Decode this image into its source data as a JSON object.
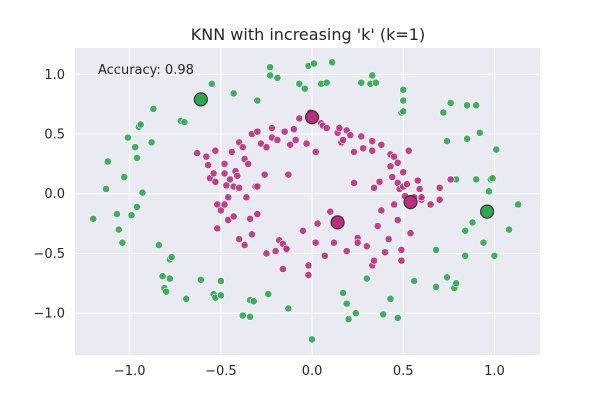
{
  "chart_data": {
    "type": "scatter",
    "title": "KNN with increasing 'k' (k=1)",
    "annotation": "Accuracy: 0.98",
    "xlabel": "",
    "ylabel": "",
    "xlim": [
      -1.3,
      1.25
    ],
    "ylim": [
      -1.35,
      1.22
    ],
    "xticks": [
      -1.0,
      -0.5,
      0.0,
      0.5,
      1.0
    ],
    "xtick_labels": [
      "−1.0",
      "−0.5",
      "0.0",
      "0.5",
      "1.0"
    ],
    "yticks": [
      -1.0,
      -0.5,
      0.0,
      0.5,
      1.0
    ],
    "ytick_labels": [
      "−1.0",
      "−0.5",
      "0.0",
      "0.5",
      "1.0"
    ],
    "grid": true,
    "colors": {
      "background": "#eaeaf2",
      "grid": "#ffffff",
      "outer_class": "#2ca94f",
      "inner_class": "#bd2e7f",
      "highlight_edge": "#333333"
    },
    "series": [
      {
        "class": "outer",
        "points": [
          [
            -1.2,
            -0.21
          ],
          [
            -1.13,
            0.04
          ],
          [
            -1.12,
            0.27
          ],
          [
            -1.07,
            -0.17
          ],
          [
            -1.06,
            -0.3
          ],
          [
            -1.04,
            -0.41
          ],
          [
            -1.03,
            0.14
          ],
          [
            -1.01,
            0.47
          ],
          [
            -0.99,
            -0.18
          ],
          [
            -0.97,
            0.39
          ],
          [
            -0.96,
            -0.11
          ],
          [
            -0.96,
            0.3
          ],
          [
            -0.95,
            0.56
          ],
          [
            -0.94,
            0.58
          ],
          [
            -0.93,
            0.01
          ],
          [
            -0.88,
            0.43
          ],
          [
            -0.87,
            0.71
          ],
          [
            -0.84,
            -0.43
          ],
          [
            -0.82,
            -0.69
          ],
          [
            -0.81,
            -0.79
          ],
          [
            -0.8,
            -0.82
          ],
          [
            -0.78,
            -0.71
          ],
          [
            -0.78,
            -0.55
          ],
          [
            -0.77,
            -0.53
          ],
          [
            -0.72,
            0.61
          ],
          [
            -0.7,
            0.6
          ],
          [
            -0.69,
            -0.88
          ],
          [
            -0.61,
            -0.72
          ],
          [
            -0.55,
            0.92
          ],
          [
            -0.54,
            -0.84
          ],
          [
            -0.53,
            -0.87
          ],
          [
            -0.5,
            -0.85
          ],
          [
            -0.5,
            -0.73
          ],
          [
            -0.43,
            0.84
          ],
          [
            -0.38,
            -1.02
          ],
          [
            -0.34,
            -1.03
          ],
          [
            -0.34,
            -0.89
          ],
          [
            -0.32,
            -0.9
          ],
          [
            -0.3,
            0.78
          ],
          [
            -0.24,
            -0.84
          ],
          [
            -0.23,
            1.06
          ],
          [
            -0.23,
            0.99
          ],
          [
            -0.19,
            0.97
          ],
          [
            -0.13,
            -0.96
          ],
          [
            -0.07,
            0.92
          ],
          [
            -0.04,
            0.88
          ],
          [
            -0.02,
            1.07
          ],
          [
            0.0,
            -1.22
          ],
          [
            0.01,
            1.09
          ],
          [
            0.05,
            0.92
          ],
          [
            0.08,
            0.93
          ],
          [
            0.11,
            1.1
          ],
          [
            0.17,
            -0.83
          ],
          [
            0.19,
            -0.92
          ],
          [
            0.2,
            -1.05
          ],
          [
            0.24,
            -1.0
          ],
          [
            0.27,
            0.93
          ],
          [
            0.3,
            -0.71
          ],
          [
            0.32,
            0.92
          ],
          [
            0.33,
            0.99
          ],
          [
            0.35,
            0.93
          ],
          [
            0.39,
            -1.01
          ],
          [
            0.43,
            -0.88
          ],
          [
            0.47,
            -1.04
          ],
          [
            0.49,
            0.68
          ],
          [
            0.5,
            0.87
          ],
          [
            0.5,
            0.78
          ],
          [
            0.5,
            0.69
          ],
          [
            0.56,
            -0.73
          ],
          [
            0.68,
            -0.47
          ],
          [
            0.68,
            -0.78
          ],
          [
            0.72,
            0.68
          ],
          [
            0.74,
            -0.7
          ],
          [
            0.74,
            0.44
          ],
          [
            0.76,
            0.76
          ],
          [
            0.78,
            -0.79
          ],
          [
            0.79,
            -0.75
          ],
          [
            0.79,
            0.12
          ],
          [
            0.84,
            -0.52
          ],
          [
            0.84,
            -0.31
          ],
          [
            0.85,
            0.74
          ],
          [
            0.85,
            0.46
          ],
          [
            0.88,
            -0.24
          ],
          [
            0.9,
            0.74
          ],
          [
            0.9,
            0.12
          ],
          [
            0.92,
            0.51
          ],
          [
            0.94,
            -0.41
          ],
          [
            0.97,
            0.02
          ],
          [
            0.98,
            0.12
          ],
          [
            0.99,
            0.13
          ],
          [
            1.0,
            -0.52
          ],
          [
            1.01,
            0.37
          ],
          [
            1.08,
            -0.3
          ],
          [
            1.13,
            -0.09
          ]
        ]
      },
      {
        "class": "inner",
        "points": [
          [
            -0.63,
            0.34
          ],
          [
            -0.58,
            0.31
          ],
          [
            -0.57,
            0.24
          ],
          [
            -0.56,
            0.13
          ],
          [
            -0.54,
            0.17
          ],
          [
            -0.53,
            0.36
          ],
          [
            -0.53,
            0.1
          ],
          [
            -0.52,
            -0.09
          ],
          [
            -0.52,
            -0.29
          ],
          [
            -0.5,
            -0.14
          ],
          [
            -0.48,
            -0.09
          ],
          [
            -0.48,
            0.25
          ],
          [
            -0.48,
            0.17
          ],
          [
            -0.47,
            0.07
          ],
          [
            -0.46,
            -0.22
          ],
          [
            -0.46,
            -0.03
          ],
          [
            -0.45,
            0.12
          ],
          [
            -0.44,
            0.35
          ],
          [
            -0.43,
            -0.19
          ],
          [
            -0.43,
            0.06
          ],
          [
            -0.42,
            0.19
          ],
          [
            -0.41,
            0.15
          ],
          [
            -0.4,
            -0.38
          ],
          [
            -0.4,
            0.43
          ],
          [
            -0.4,
            0.05
          ],
          [
            -0.38,
            0.39
          ],
          [
            -0.37,
            -0.43
          ],
          [
            -0.37,
            0.29
          ],
          [
            -0.36,
            -0.03
          ],
          [
            -0.35,
            0.25
          ],
          [
            -0.34,
            -0.21
          ],
          [
            -0.33,
            0.5
          ],
          [
            -0.33,
            -0.34
          ],
          [
            -0.31,
            0.06
          ],
          [
            -0.3,
            0.52
          ],
          [
            -0.3,
            0.06
          ],
          [
            -0.3,
            -0.17
          ],
          [
            -0.28,
            0.42
          ],
          [
            -0.26,
            0.16
          ],
          [
            -0.25,
            0.39
          ],
          [
            -0.25,
            -0.5
          ],
          [
            -0.22,
            0.55
          ],
          [
            -0.22,
            0.47
          ],
          [
            -0.2,
            -0.48
          ],
          [
            -0.19,
            0.45
          ],
          [
            -0.18,
            -0.39
          ],
          [
            -0.16,
            -0.42
          ],
          [
            -0.16,
            -0.63
          ],
          [
            -0.15,
            0.52
          ],
          [
            -0.14,
            -0.47
          ],
          [
            -0.14,
            -0.46
          ],
          [
            -0.13,
            0.16
          ],
          [
            -0.12,
            0.41
          ],
          [
            -0.1,
            0.54
          ],
          [
            -0.09,
            0.45
          ],
          [
            -0.07,
            0.63
          ],
          [
            -0.05,
            -0.31
          ],
          [
            -0.03,
            0.42
          ],
          [
            -0.02,
            -0.6
          ],
          [
            -0.02,
            -0.68
          ],
          [
            -0.01,
            0.68
          ],
          [
            0.0,
            0.64
          ],
          [
            0.02,
            0.35
          ],
          [
            0.02,
            -0.41
          ],
          [
            0.03,
            -0.25
          ],
          [
            0.05,
            0.59
          ],
          [
            0.06,
            0.57
          ],
          [
            0.07,
            -0.52
          ],
          [
            0.08,
            0.55
          ],
          [
            0.1,
            -0.15
          ],
          [
            0.12,
            -0.41
          ],
          [
            0.14,
            0.51
          ],
          [
            0.15,
            0.55
          ],
          [
            0.16,
            -0.24
          ],
          [
            0.16,
            0.43
          ],
          [
            0.17,
            0.45
          ],
          [
            0.19,
            -0.48
          ],
          [
            0.19,
            0.53
          ],
          [
            0.21,
            0.49
          ],
          [
            0.23,
            0.35
          ],
          [
            0.23,
            0.09
          ],
          [
            0.25,
            -0.37
          ],
          [
            0.25,
            -0.41
          ],
          [
            0.27,
            0.48
          ],
          [
            0.28,
            0.38
          ],
          [
            0.3,
            -0.44
          ],
          [
            0.33,
            0.44
          ],
          [
            0.33,
            0.36
          ],
          [
            0.33,
            -0.6
          ],
          [
            0.34,
            0.05
          ],
          [
            0.34,
            -0.56
          ],
          [
            0.36,
            -0.27
          ],
          [
            0.37,
            0.1
          ],
          [
            0.38,
            0.41
          ],
          [
            0.38,
            -0.14
          ],
          [
            0.4,
            -0.49
          ],
          [
            0.42,
            -0.38
          ],
          [
            0.43,
            0.23
          ],
          [
            0.43,
            0.33
          ],
          [
            0.44,
            0.14
          ],
          [
            0.45,
            0.31
          ],
          [
            0.45,
            -0.09
          ],
          [
            0.47,
            0.09
          ],
          [
            0.47,
            0.26
          ],
          [
            0.47,
            -0.22
          ],
          [
            0.48,
            0.04
          ],
          [
            0.49,
            -0.47
          ],
          [
            0.49,
            -0.56
          ],
          [
            0.5,
            0.06
          ],
          [
            0.5,
            0.18
          ],
          [
            0.51,
            -0.02
          ],
          [
            0.52,
            0.08
          ],
          [
            0.53,
            0.36
          ],
          [
            0.54,
            -0.33
          ],
          [
            0.56,
            -0.03
          ],
          [
            0.58,
            0.11
          ],
          [
            0.59,
            0.04
          ],
          [
            0.6,
            -0.05
          ],
          [
            0.6,
            -0.03
          ],
          [
            0.65,
            -0.09
          ],
          [
            0.7,
            -0.05
          ],
          [
            0.7,
            0.05
          ],
          [
            0.76,
            0.12
          ]
        ]
      }
    ],
    "highlighted_neighbors": [
      {
        "class": "outer",
        "point": [
          -0.61,
          0.79
        ]
      },
      {
        "class": "outer",
        "point": [
          0.96,
          -0.15
        ]
      },
      {
        "class": "inner",
        "point": [
          0.0,
          0.64
        ]
      },
      {
        "class": "inner",
        "point": [
          0.14,
          -0.24
        ]
      },
      {
        "class": "inner",
        "point": [
          0.54,
          -0.07
        ]
      }
    ]
  }
}
